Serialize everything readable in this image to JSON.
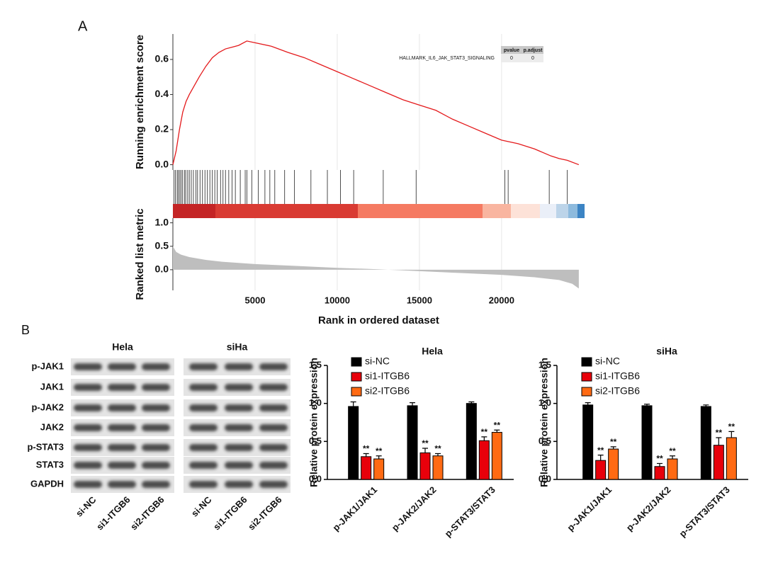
{
  "panel_labels": [
    "A",
    "B"
  ],
  "chart_data": [
    {
      "type": "line",
      "ylabel": "Running enrichment score",
      "annotation": "HALLMARK_IL6_JAK_STAT3_SIGNALING",
      "table": {
        "columns": [
          "pvalue",
          "p.adjust"
        ],
        "rows": [
          [
            0,
            0
          ]
        ]
      },
      "x": [
        0,
        200,
        400,
        600,
        800,
        1000,
        1300,
        1600,
        2000,
        2400,
        2800,
        3200,
        3600,
        4000,
        4500,
        5000,
        6000,
        7000,
        8000,
        9000,
        10000,
        11000,
        12000,
        13000,
        14000,
        15000,
        16000,
        17000,
        18000,
        19000,
        20000,
        21000,
        22000,
        23000,
        23500,
        24000,
        24700
      ],
      "values": [
        0,
        0.08,
        0.2,
        0.3,
        0.36,
        0.4,
        0.45,
        0.5,
        0.56,
        0.61,
        0.64,
        0.66,
        0.67,
        0.68,
        0.705,
        0.695,
        0.675,
        0.64,
        0.61,
        0.57,
        0.53,
        0.49,
        0.45,
        0.41,
        0.37,
        0.34,
        0.31,
        0.26,
        0.22,
        0.18,
        0.14,
        0.12,
        0.09,
        0.05,
        0.035,
        0.025,
        0
      ],
      "color": "#e41a1c",
      "hits": [
        60,
        150,
        260,
        330,
        420,
        500,
        590,
        700,
        780,
        900,
        1000,
        1120,
        1250,
        1400,
        1500,
        1650,
        1800,
        1950,
        2100,
        2250,
        2400,
        2550,
        2700,
        2900,
        3050,
        3200,
        3400,
        3600,
        3800,
        4100,
        4400,
        4500,
        4800,
        5200,
        5600,
        5900,
        6200,
        6800,
        7400,
        8400,
        9400,
        10200,
        11000,
        12800,
        14800,
        20200,
        20400,
        22900,
        24000
      ],
      "xlim": [
        0,
        25050
      ],
      "ylim": [
        -0.03,
        0.745
      ],
      "xticks": [
        5000,
        10000,
        15000,
        20000
      ],
      "yticks": [
        {
          "value": 0,
          "label": "0.0"
        },
        {
          "value": 0.2,
          "label": "0.2"
        },
        {
          "value": 0.4,
          "label": "0.4"
        },
        {
          "value": 0.6,
          "label": "0.6"
        }
      ]
    },
    {
      "type": "area",
      "ylabel": "Ranked list metric",
      "xlabel": "Rank in ordered dataset",
      "x": [
        0,
        200,
        500,
        1000,
        2000,
        3000,
        5000,
        7500,
        10000,
        12500,
        15000,
        17500,
        20000,
        22000,
        23500,
        24300,
        24700
      ],
      "values": [
        0.5,
        0.38,
        0.32,
        0.27,
        0.21,
        0.17,
        0.12,
        0.08,
        0.04,
        0.01,
        -0.03,
        -0.07,
        -0.11,
        -0.16,
        -0.22,
        -0.3,
        -0.4
      ],
      "color": "#bebebe",
      "xlim": [
        0,
        25050
      ],
      "ylim": [
        -0.44,
        1.1
      ],
      "xticks": [
        5000,
        10000,
        15000,
        20000
      ],
      "yticks": [
        {
          "value": 0,
          "label": "0.0"
        },
        {
          "value": 0.5,
          "label": "0.5"
        },
        {
          "value": 1,
          "label": "1.0"
        }
      ]
    },
    {
      "type": "grouped_bar",
      "title": "Hela",
      "ylabel": "Relative protein expression",
      "categories": [
        "p-JAK1/JAK1",
        "p-JAK2/JAK2",
        "p-STAT3/STAT3"
      ],
      "series": [
        {
          "name": "si-NC",
          "color": "#000000",
          "values": [
            0.96,
            0.97,
            1.0
          ],
          "errors": [
            0.06,
            0.04,
            0.02
          ]
        },
        {
          "name": "si1-ITGB6",
          "color": "#e8000b",
          "values": [
            0.3,
            0.35,
            0.51
          ],
          "errors": [
            0.04,
            0.06,
            0.05
          ],
          "annotations": [
            "**",
            "**",
            "**"
          ]
        },
        {
          "name": "si2-ITGB6",
          "color": "#ff6a13",
          "values": [
            0.27,
            0.31,
            0.62
          ],
          "errors": [
            0.04,
            0.03,
            0.03
          ],
          "annotations": [
            "**",
            "**",
            "**"
          ]
        }
      ],
      "ylim": [
        0,
        1.5
      ],
      "yticks": [
        {
          "value": 0,
          "label": "0.0"
        },
        {
          "value": 0.5,
          "label": "0.5"
        },
        {
          "value": 1,
          "label": "1.0"
        },
        {
          "value": 1.5,
          "label": "1.5"
        }
      ]
    },
    {
      "type": "grouped_bar",
      "title": "siHa",
      "ylabel": "Relative protein expression",
      "categories": [
        "p-JAK1/JAK1",
        "p-JAK2/JAK2",
        "p-STAT3/STAT3"
      ],
      "series": [
        {
          "name": "si-NC",
          "color": "#000000",
          "values": [
            0.98,
            0.97,
            0.96
          ],
          "errors": [
            0.03,
            0.02,
            0.02
          ]
        },
        {
          "name": "si1-ITGB6",
          "color": "#e8000b",
          "values": [
            0.25,
            0.17,
            0.45
          ],
          "errors": [
            0.07,
            0.04,
            0.1
          ],
          "annotations": [
            "**",
            "**",
            "**"
          ]
        },
        {
          "name": "si2-ITGB6",
          "color": "#ff6a13",
          "values": [
            0.4,
            0.27,
            0.55
          ],
          "errors": [
            0.03,
            0.04,
            0.08
          ],
          "annotations": [
            "**",
            "**",
            "**"
          ]
        }
      ],
      "ylim": [
        0,
        1.5
      ],
      "yticks": [
        {
          "value": 0,
          "label": "0.0"
        },
        {
          "value": 0.5,
          "label": "0.5"
        },
        {
          "value": 1,
          "label": "1.0"
        },
        {
          "value": 1.5,
          "label": "1.5"
        }
      ]
    }
  ],
  "blot": {
    "cell_lines": [
      "Hela",
      "siHa"
    ],
    "proteins": [
      "p-JAK1",
      "JAK1",
      "p-JAK2",
      "JAK2",
      "p-STAT3",
      "STAT3",
      "GAPDH"
    ],
    "lanes": [
      "si-NC",
      "si1-ITGB6",
      "si2-ITGB6"
    ]
  }
}
